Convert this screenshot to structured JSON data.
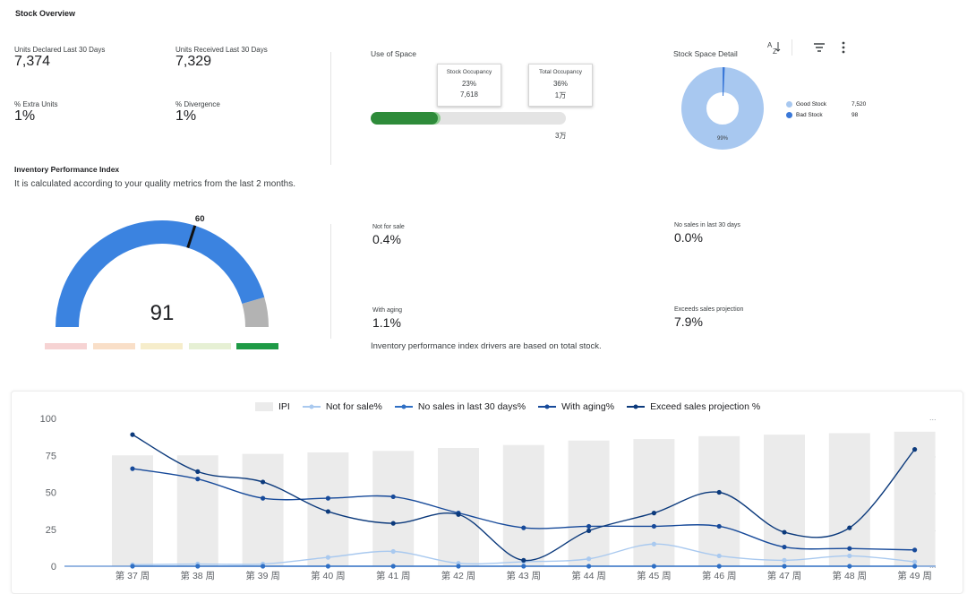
{
  "header": {
    "title": "Stock Overview"
  },
  "kpis": [
    {
      "label": "Units Declared Last 30 Days",
      "value": "7,374"
    },
    {
      "label": "Units Received Last 30 Days",
      "value": "7,329"
    },
    {
      "label": "% Extra Units",
      "value": "1%"
    },
    {
      "label": "% Divergence",
      "value": "1%"
    }
  ],
  "space": {
    "title": "Use of Space",
    "stock_occupancy": {
      "label": "Stock Occupancy",
      "percent": "23%",
      "value": "7,618"
    },
    "total_occupancy": {
      "label": "Total Occupancy",
      "percent": "36%",
      "value": "1万"
    },
    "bar_max_label": "3万",
    "stock_fraction": 0.23,
    "total_fraction": 0.36
  },
  "stock_detail": {
    "title": "Stock Space Detail",
    "center_label": "99%",
    "legend": [
      {
        "name": "Good Stock",
        "value": "7,520",
        "color": "#a8c8f0"
      },
      {
        "name": "Bad Stock",
        "value": "98",
        "color": "#3a78d8"
      }
    ],
    "toolbar": {
      "sort_icon": "sort-az-icon",
      "filter_icon": "filter-icon",
      "more_icon": "more-vert-icon"
    }
  },
  "ipi": {
    "title": "Inventory Performance Index",
    "description": "It is calculated according to your quality metrics from the last 2 months.",
    "score": "91",
    "threshold": "60",
    "score_value": 91,
    "threshold_value": 60,
    "max_value": 100,
    "colors": {
      "fill": "#3b83e0",
      "rest": "#b3b3b3",
      "marker": "#111111"
    },
    "range_pills": [
      "#f6d3d3",
      "#f9dfc8",
      "#f6edcb",
      "#e6f0d4",
      "#1e9a46"
    ]
  },
  "drivers": {
    "items": [
      {
        "label": "Not for sale",
        "value": "0.4%"
      },
      {
        "label": "No sales in last 30 days",
        "value": "0.0%"
      },
      {
        "label": "With aging",
        "value": "1.1%"
      },
      {
        "label": "Exceeds sales projection",
        "value": "7.9%"
      }
    ],
    "note": "Inventory performance index drivers are based on total stock."
  },
  "chart_data": {
    "type": "bar",
    "title": "",
    "categories": [
      "第 37 周",
      "第 38 周",
      "第 39 周",
      "第 40 周",
      "第 41 周",
      "第 42 周",
      "第 43 周",
      "第 44 周",
      "第 45 周",
      "第 46 周",
      "第 47 周",
      "第 48 周",
      "第 49 周"
    ],
    "ylim": [
      0,
      100
    ],
    "yticks": [
      "0",
      "25",
      "50",
      "75",
      "100"
    ],
    "xlabel": "",
    "ylabel": "",
    "legend_position": "top",
    "series": [
      {
        "name": "IPI",
        "type": "bar",
        "color": "#ebebeb",
        "values": [
          75,
          75,
          76,
          77,
          78,
          80,
          82,
          85,
          86,
          88,
          89,
          90,
          91
        ]
      },
      {
        "name": "Not for sale%",
        "type": "line",
        "color": "#a9c9ef",
        "values": [
          1,
          1.5,
          1.5,
          6,
          10,
          2,
          3,
          5,
          15,
          7,
          4,
          7,
          3
        ]
      },
      {
        "name": "No sales in last 30 days%",
        "type": "line",
        "color": "#2f6fc4",
        "values": [
          0,
          0,
          0,
          0,
          0,
          0,
          0,
          0,
          0,
          0,
          0,
          0,
          0
        ]
      },
      {
        "name": "With aging%",
        "type": "line",
        "color": "#174a9a",
        "values": [
          66,
          59,
          46,
          46,
          47,
          36,
          26,
          27,
          27,
          27,
          13,
          12,
          11
        ]
      },
      {
        "name": "Exceed sales projection %",
        "type": "line",
        "color": "#0c3a7c",
        "values": [
          89,
          64,
          57,
          37,
          29,
          35,
          4,
          24,
          36,
          50,
          23,
          26,
          79
        ]
      }
    ]
  }
}
